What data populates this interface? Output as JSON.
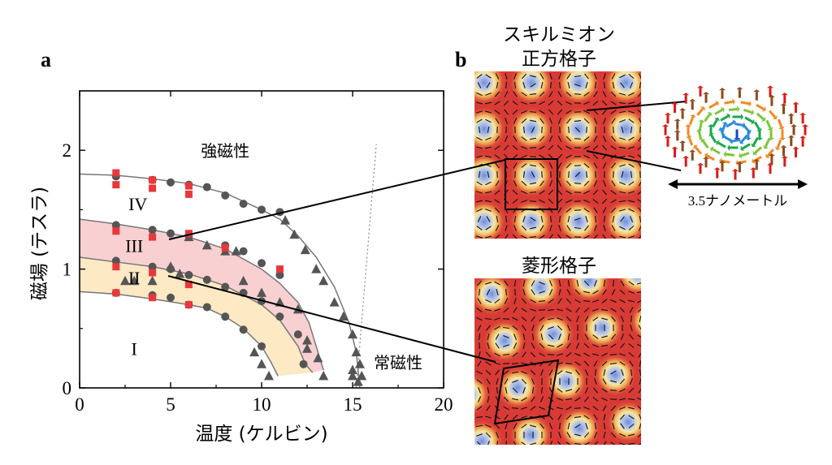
{
  "panel_labels": {
    "a": "a",
    "b": "b"
  },
  "panel_b": {
    "square_title_line1": "スキルミオン",
    "square_title_line2": "正方格子",
    "rhombic_title": "菱形格子",
    "scale_label": "3.5ナノメートル"
  },
  "colors": {
    "markers_circle": "#555555",
    "markers_triangle": "#555555",
    "markers_square": "#e8383d",
    "phase_III_fill": "#f9d0d2",
    "phase_II_fill": "#fde9c4",
    "curve": "#777777",
    "map_background": "#d83a35",
    "map_ring": "#f2d36b",
    "map_core": "#8fa9e0"
  },
  "chart_data": {
    "type": "scatter",
    "xlabel": "温度 (ケルビン)",
    "ylabel": "磁場 (テスラ)",
    "xlim": [
      0,
      20
    ],
    "ylim": [
      0,
      2.5
    ],
    "xticks": [
      0,
      5,
      10,
      15,
      20
    ],
    "yticks": [
      0,
      1,
      2
    ],
    "phase_labels": [
      {
        "text": "強磁性",
        "x": 8.0,
        "y": 2.0
      },
      {
        "text": "IV",
        "x": 3.2,
        "y": 1.55
      },
      {
        "text": "III",
        "x": 3.0,
        "y": 1.2
      },
      {
        "text": "II",
        "x": 3.0,
        "y": 0.93
      },
      {
        "text": "I",
        "x": 3.0,
        "y": 0.33
      },
      {
        "text": "常磁性",
        "x": 17.5,
        "y": 0.22
      }
    ],
    "bands": [
      {
        "name": "III",
        "upper": [
          [
            0,
            1.42
          ],
          [
            2,
            1.38
          ],
          [
            4,
            1.33
          ],
          [
            6,
            1.27
          ],
          [
            8,
            1.17
          ],
          [
            10,
            1.0
          ],
          [
            11,
            0.88
          ],
          [
            12,
            0.72
          ],
          [
            12.6,
            0.55
          ],
          [
            13.1,
            0.3
          ],
          [
            13.4,
            0.15
          ]
        ],
        "lower": [
          [
            0,
            1.1
          ],
          [
            2,
            1.06
          ],
          [
            4,
            1.02
          ],
          [
            6,
            0.96
          ],
          [
            8,
            0.86
          ],
          [
            10,
            0.7
          ],
          [
            11,
            0.57
          ],
          [
            12,
            0.35
          ],
          [
            12.4,
            0.2
          ],
          [
            12.8,
            0.13
          ]
        ]
      },
      {
        "name": "II",
        "upper": [
          [
            0,
            1.1
          ],
          [
            2,
            1.06
          ],
          [
            4,
            1.02
          ],
          [
            6,
            0.96
          ],
          [
            8,
            0.86
          ],
          [
            10,
            0.7
          ],
          [
            11,
            0.57
          ],
          [
            12,
            0.35
          ],
          [
            12.4,
            0.2
          ],
          [
            12.8,
            0.13
          ]
        ],
        "lower": [
          [
            0,
            0.81
          ],
          [
            2,
            0.79
          ],
          [
            4,
            0.75
          ],
          [
            6,
            0.7
          ],
          [
            7,
            0.67
          ],
          [
            8,
            0.6
          ],
          [
            9,
            0.5
          ],
          [
            10,
            0.35
          ],
          [
            10.5,
            0.22
          ],
          [
            10.9,
            0.1
          ]
        ]
      }
    ],
    "curves": [
      {
        "name": "phase-boundary-ferro",
        "points": [
          [
            0,
            1.8
          ],
          [
            2,
            1.79
          ],
          [
            4,
            1.76
          ],
          [
            6,
            1.72
          ],
          [
            8,
            1.64
          ],
          [
            10,
            1.5
          ],
          [
            11,
            1.42
          ],
          [
            12,
            1.28
          ],
          [
            13,
            1.1
          ],
          [
            14,
            0.85
          ],
          [
            14.8,
            0.55
          ],
          [
            15.2,
            0.3
          ],
          [
            15.4,
            0.0
          ]
        ]
      },
      {
        "name": "phase-boundary-III",
        "points": [
          [
            0,
            1.42
          ],
          [
            2,
            1.38
          ],
          [
            4,
            1.33
          ],
          [
            6,
            1.27
          ],
          [
            8,
            1.17
          ],
          [
            10,
            1.0
          ],
          [
            11,
            0.88
          ],
          [
            12,
            0.72
          ],
          [
            12.6,
            0.55
          ],
          [
            13.1,
            0.3
          ],
          [
            13.4,
            0.15
          ]
        ]
      },
      {
        "name": "phase-boundary-II",
        "points": [
          [
            0,
            1.1
          ],
          [
            2,
            1.06
          ],
          [
            4,
            1.02
          ],
          [
            6,
            0.96
          ],
          [
            8,
            0.86
          ],
          [
            10,
            0.7
          ],
          [
            11,
            0.57
          ],
          [
            12,
            0.35
          ],
          [
            12.4,
            0.2
          ],
          [
            12.8,
            0.13
          ]
        ]
      },
      {
        "name": "phase-boundary-I",
        "points": [
          [
            0,
            0.81
          ],
          [
            2,
            0.79
          ],
          [
            4,
            0.75
          ],
          [
            6,
            0.7
          ],
          [
            7,
            0.67
          ],
          [
            8,
            0.6
          ],
          [
            9,
            0.5
          ],
          [
            10,
            0.35
          ],
          [
            10.5,
            0.22
          ],
          [
            10.9,
            0.1
          ]
        ]
      }
    ],
    "dotted_line": [
      [
        15.2,
        0.0
      ],
      [
        16.3,
        2.05
      ]
    ],
    "series": [
      {
        "marker": "circle",
        "points": [
          [
            2,
            1.78
          ],
          [
            4,
            1.75
          ],
          [
            5,
            1.73
          ],
          [
            6,
            1.71
          ],
          [
            7,
            1.69
          ],
          [
            8,
            1.62
          ],
          [
            9,
            1.55
          ],
          [
            10,
            1.5
          ],
          [
            11,
            1.48
          ],
          [
            2,
            1.37
          ],
          [
            4,
            1.33
          ],
          [
            5,
            1.3
          ],
          [
            6,
            1.28
          ],
          [
            8,
            1.2
          ],
          [
            9,
            1.15
          ],
          [
            10,
            1.05
          ],
          [
            11,
            0.95
          ],
          [
            2,
            1.07
          ],
          [
            4,
            1.02
          ],
          [
            5,
            1.0
          ],
          [
            6,
            0.95
          ],
          [
            7,
            0.91
          ],
          [
            8,
            0.85
          ],
          [
            9,
            0.8
          ],
          [
            10,
            0.73
          ],
          [
            11,
            0.6
          ],
          [
            12,
            0.45
          ],
          [
            12.3,
            0.2
          ],
          [
            2,
            0.8
          ],
          [
            4,
            0.78
          ],
          [
            5,
            0.76
          ],
          [
            6,
            0.7
          ],
          [
            7,
            0.68
          ],
          [
            8,
            0.6
          ],
          [
            9,
            0.49
          ],
          [
            10,
            0.35
          ]
        ]
      },
      {
        "marker": "triangle",
        "points": [
          [
            2.5,
            0.9
          ],
          [
            3,
            0.9
          ],
          [
            4,
            0.9
          ],
          [
            5,
            1.02
          ],
          [
            5.5,
            0.96
          ],
          [
            6,
            1.27
          ],
          [
            7,
            1.2
          ],
          [
            8,
            1.15
          ],
          [
            8.6,
            1.15
          ],
          [
            9,
            0.9
          ],
          [
            10,
            0.8
          ],
          [
            11,
            0.72
          ],
          [
            12,
            0.66
          ],
          [
            12.5,
            0.4
          ],
          [
            12.5,
            0.33
          ],
          [
            13.1,
            0.25
          ],
          [
            13.4,
            0.1
          ],
          [
            9.6,
            0.3
          ],
          [
            10,
            0.2
          ],
          [
            10.4,
            0.1
          ],
          [
            11.3,
            1.41
          ],
          [
            11.8,
            1.29
          ],
          [
            12.4,
            1.16
          ],
          [
            13,
            1.0
          ],
          [
            13.4,
            0.9
          ],
          [
            14,
            0.72
          ],
          [
            14.5,
            0.6
          ],
          [
            15,
            0.45
          ],
          [
            15.2,
            0.3
          ],
          [
            15.4,
            0.2
          ],
          [
            15.5,
            0.1
          ],
          [
            15.0,
            0.15
          ],
          [
            15.0,
            0.1
          ],
          [
            15.3,
            0.05
          ]
        ]
      },
      {
        "marker": "square",
        "points": [
          [
            2,
            1.81
          ],
          [
            4,
            1.75
          ],
          [
            6,
            1.7
          ],
          [
            2,
            1.71
          ],
          [
            4,
            1.68
          ],
          [
            6,
            1.63
          ],
          [
            2,
            1.32
          ],
          [
            4,
            1.27
          ],
          [
            6,
            1.3
          ],
          [
            8,
            1.18
          ],
          [
            11,
            1.0
          ],
          [
            2,
            1.02
          ],
          [
            4,
            0.97
          ],
          [
            6,
            0.87
          ],
          [
            2,
            0.8
          ],
          [
            4,
            0.76
          ],
          [
            6,
            0.7
          ]
        ]
      }
    ]
  }
}
